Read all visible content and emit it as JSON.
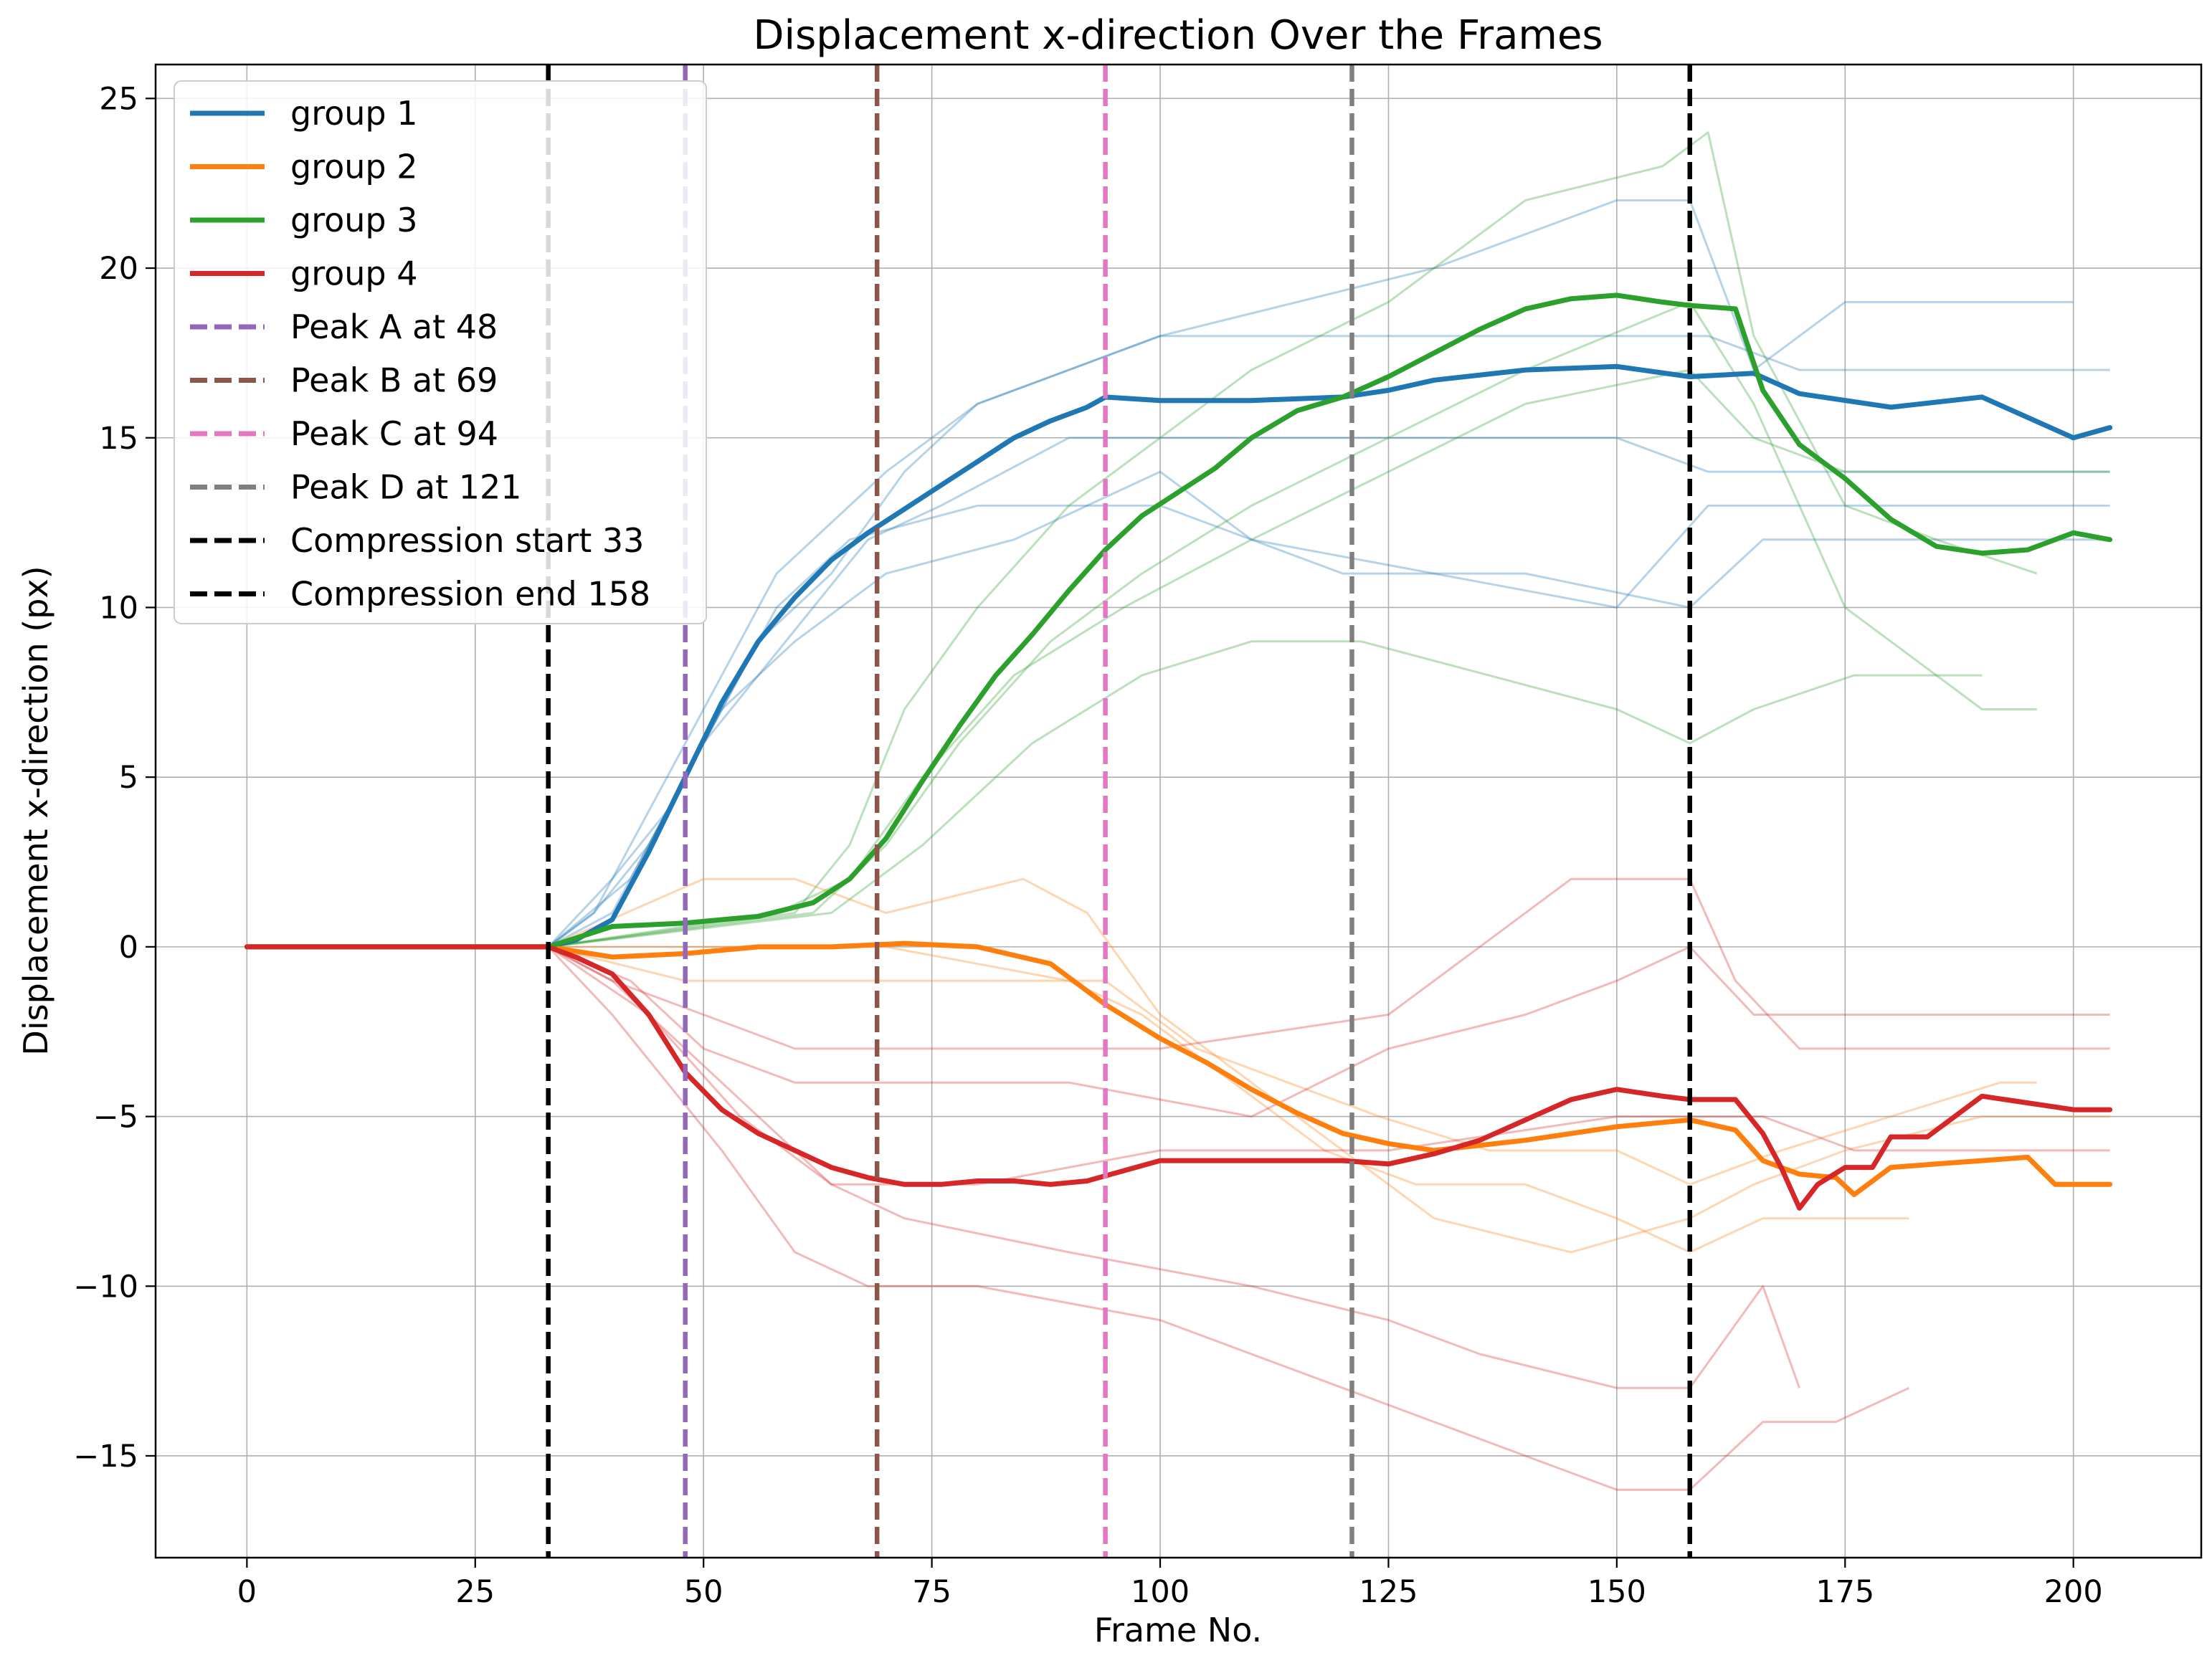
{
  "chart_data": {
    "type": "line",
    "title": "Displacement x-direction Over the Frames",
    "xlabel": "Frame No.",
    "ylabel": "Displacement x-direction (px)",
    "xlim": [
      -10,
      214
    ],
    "ylim": [
      -18,
      26
    ],
    "xticks": [
      0,
      25,
      50,
      75,
      100,
      125,
      150,
      175,
      200
    ],
    "yticks": [
      -15,
      -10,
      -5,
      0,
      5,
      10,
      15,
      20,
      25
    ],
    "xtick_labels": [
      "0",
      "25",
      "50",
      "75",
      "100",
      "125",
      "150",
      "175",
      "200"
    ],
    "ytick_labels": [
      "−15",
      "−10",
      "−5",
      "0",
      "5",
      "10",
      "15",
      "20",
      "25"
    ],
    "grid": true,
    "legend_position": "top-left",
    "series": [
      {
        "name": "group 1",
        "color": "#1f77b4",
        "x": [
          0,
          33,
          36,
          40,
          44,
          48,
          52,
          56,
          60,
          64,
          68,
          72,
          76,
          80,
          84,
          88,
          92,
          94,
          100,
          110,
          120,
          125,
          130,
          140,
          150,
          158,
          165,
          170,
          180,
          190,
          200,
          204
        ],
        "y": [
          0,
          0,
          0.2,
          0.8,
          2.8,
          5,
          7.2,
          9,
          10.3,
          11.4,
          12.2,
          12.9,
          13.6,
          14.3,
          15,
          15.5,
          15.9,
          16.2,
          16.1,
          16.1,
          16.2,
          16.4,
          16.7,
          17,
          17.1,
          16.8,
          16.9,
          16.3,
          15.9,
          16.2,
          15,
          15.3
        ]
      },
      {
        "name": "group 2",
        "color": "#ff7f0e",
        "x": [
          0,
          33,
          40,
          48,
          56,
          64,
          72,
          80,
          88,
          94,
          100,
          105,
          110,
          115,
          120,
          125,
          130,
          140,
          150,
          158,
          163,
          166,
          170,
          174,
          176,
          180,
          185,
          190,
          195,
          198,
          204
        ],
        "y": [
          0,
          0,
          -0.3,
          -0.2,
          0,
          0,
          0.1,
          0,
          -0.5,
          -1.7,
          -2.7,
          -3.4,
          -4.2,
          -4.9,
          -5.5,
          -5.8,
          -6,
          -5.7,
          -5.3,
          -5.1,
          -5.4,
          -6.3,
          -6.7,
          -6.8,
          -7.3,
          -6.5,
          -6.4,
          -6.3,
          -6.2,
          -7,
          -7
        ]
      },
      {
        "name": "group 3",
        "color": "#2ca02c",
        "x": [
          0,
          33,
          40,
          48,
          56,
          62,
          66,
          70,
          74,
          78,
          82,
          86,
          90,
          94,
          98,
          102,
          106,
          110,
          115,
          120,
          125,
          130,
          135,
          140,
          145,
          150,
          155,
          158,
          163,
          166,
          170,
          175,
          180,
          185,
          190,
          195,
          200,
          204
        ],
        "y": [
          0,
          0,
          0.6,
          0.7,
          0.9,
          1.3,
          2,
          3.2,
          4.9,
          6.5,
          8,
          9.2,
          10.5,
          11.7,
          12.7,
          13.4,
          14.1,
          15,
          15.8,
          16.2,
          16.8,
          17.5,
          18.2,
          18.8,
          19.1,
          19.2,
          19,
          18.9,
          18.8,
          16.4,
          14.8,
          13.8,
          12.6,
          11.8,
          11.6,
          11.7,
          12.2,
          12
        ]
      },
      {
        "name": "group 4",
        "color": "#d62728",
        "x": [
          0,
          33,
          36,
          40,
          44,
          48,
          52,
          56,
          60,
          64,
          68,
          72,
          76,
          80,
          84,
          88,
          92,
          96,
          100,
          110,
          120,
          125,
          130,
          135,
          140,
          145,
          150,
          155,
          158,
          163,
          166,
          168,
          170,
          172,
          175,
          178,
          180,
          184,
          190,
          195,
          200,
          204
        ],
        "y": [
          0,
          0,
          -0.3,
          -0.8,
          -2,
          -3.7,
          -4.8,
          -5.5,
          -6,
          -6.5,
          -6.8,
          -7,
          -7,
          -6.9,
          -6.9,
          -7,
          -6.9,
          -6.6,
          -6.3,
          -6.3,
          -6.3,
          -6.4,
          -6.1,
          -5.7,
          -5.1,
          -4.5,
          -4.2,
          -4.4,
          -4.5,
          -4.5,
          -5.5,
          -6.5,
          -7.7,
          -7,
          -6.5,
          -6.5,
          -5.6,
          -5.6,
          -4.4,
          -4.6,
          -4.8,
          -4.8
        ]
      }
    ],
    "vlines": [
      {
        "name": "Peak A at 48",
        "x": 48,
        "color": "#9467bd"
      },
      {
        "name": "Peak B at 69",
        "x": 69,
        "color": "#8c564b"
      },
      {
        "name": "Peak C at 94",
        "x": 94,
        "color": "#e377c2"
      },
      {
        "name": "Peak D at 121",
        "x": 121,
        "color": "#7f7f7f"
      },
      {
        "name": "Compression start 33",
        "x": 33,
        "color": "#000000"
      },
      {
        "name": "Compression end 158",
        "x": 158,
        "color": "#000000"
      }
    ],
    "background_tracks": [
      {
        "color": "#1f77b4",
        "x": [
          0,
          33,
          38,
          42,
          46,
          50,
          54,
          58,
          62,
          66,
          70,
          80,
          90,
          100,
          120,
          140,
          160,
          170,
          190,
          204
        ],
        "y": [
          0,
          0,
          1,
          3,
          5,
          7,
          9,
          11,
          12,
          13,
          14,
          16,
          17,
          18,
          18,
          18,
          18,
          17,
          17,
          17
        ]
      },
      {
        "color": "#1f77b4",
        "x": [
          0,
          33,
          38,
          44,
          50,
          56,
          62,
          68,
          76,
          90,
          110,
          130,
          150,
          160,
          175,
          204
        ],
        "y": [
          0,
          0,
          1,
          3,
          6,
          8,
          10,
          12,
          13,
          15,
          15,
          15,
          15,
          14,
          14,
          14
        ]
      },
      {
        "color": "#1f77b4",
        "x": [
          0,
          33,
          40,
          46,
          52,
          60,
          70,
          84,
          100,
          110,
          130,
          150,
          160,
          170,
          204
        ],
        "y": [
          0,
          0,
          2,
          4,
          7,
          9,
          11,
          12,
          14,
          12,
          11,
          10,
          13,
          13,
          13
        ]
      },
      {
        "color": "#1f77b4",
        "x": [
          0,
          33,
          40,
          48,
          56,
          64,
          72,
          80,
          100,
          130,
          150,
          158,
          165,
          175,
          200
        ],
        "y": [
          0,
          0,
          1,
          5,
          9,
          11,
          14,
          16,
          18,
          20,
          22,
          22,
          17,
          19,
          19
        ]
      },
      {
        "color": "#1f77b4",
        "x": [
          0,
          33,
          42,
          50,
          58,
          66,
          80,
          100,
          120,
          140,
          158,
          166,
          176,
          204
        ],
        "y": [
          0,
          0,
          2,
          6,
          10,
          12,
          13,
          13,
          11,
          11,
          10,
          12,
          12,
          12
        ]
      },
      {
        "color": "#2ca02c",
        "x": [
          0,
          33,
          60,
          66,
          72,
          80,
          90,
          100,
          110,
          125,
          140,
          155,
          160,
          165,
          175,
          185,
          196
        ],
        "y": [
          0,
          0,
          1,
          3,
          7,
          10,
          13,
          15,
          17,
          19,
          22,
          23,
          24,
          18,
          13,
          12,
          11
        ]
      },
      {
        "color": "#2ca02c",
        "x": [
          0,
          33,
          62,
          70,
          78,
          88,
          98,
          110,
          125,
          140,
          158,
          165,
          175,
          190,
          196
        ],
        "y": [
          0,
          0,
          1,
          3,
          6,
          9,
          11,
          13,
          15,
          17,
          19,
          16,
          10,
          7,
          7
        ]
      },
      {
        "color": "#2ca02c",
        "x": [
          0,
          33,
          58,
          66,
          74,
          84,
          96,
          110,
          125,
          140,
          158,
          165,
          175,
          204
        ],
        "y": [
          0,
          0,
          1,
          2,
          5,
          8,
          10,
          12,
          14,
          16,
          17,
          15,
          14,
          14
        ]
      },
      {
        "color": "#2ca02c",
        "x": [
          0,
          33,
          64,
          74,
          86,
          98,
          110,
          122,
          136,
          150,
          158,
          165,
          176,
          190
        ],
        "y": [
          0,
          0,
          1,
          3,
          6,
          8,
          9,
          9,
          8,
          7,
          6,
          7,
          8,
          8
        ]
      },
      {
        "color": "#ff7f0e",
        "x": [
          0,
          33,
          50,
          60,
          70,
          85,
          92,
          100,
          110,
          120,
          130,
          145,
          158,
          165,
          175,
          190,
          204
        ],
        "y": [
          0,
          0,
          2,
          2,
          1,
          2,
          1,
          -2,
          -4,
          -6,
          -8,
          -9,
          -8,
          -7,
          -6,
          -5,
          -5
        ]
      },
      {
        "color": "#ff7f0e",
        "x": [
          0,
          33,
          50,
          70,
          90,
          98,
          108,
          118,
          128,
          140,
          150,
          158,
          166,
          176,
          182
        ],
        "y": [
          0,
          0,
          0,
          0,
          -1,
          -2,
          -4,
          -6,
          -7,
          -7,
          -8,
          -9,
          -8,
          -8,
          -8
        ]
      },
      {
        "color": "#ff7f0e",
        "x": [
          0,
          33,
          48,
          70,
          94,
          104,
          114,
          124,
          136,
          150,
          158,
          168,
          180,
          192,
          196
        ],
        "y": [
          0,
          0,
          -1,
          -1,
          -1,
          -3,
          -4,
          -5,
          -6,
          -6,
          -7,
          -6,
          -5,
          -4,
          -4
        ]
      },
      {
        "color": "#d62728",
        "x": [
          0,
          33,
          40,
          46,
          52,
          60,
          68,
          80,
          100,
          110,
          120,
          130,
          140,
          150,
          158,
          166,
          174,
          182
        ],
        "y": [
          0,
          0,
          -2,
          -4,
          -6,
          -9,
          -10,
          -10,
          -11,
          -12,
          -13,
          -14,
          -15,
          -16,
          -16,
          -14,
          -14,
          -13
        ]
      },
      {
        "color": "#d62728",
        "x": [
          0,
          33,
          40,
          48,
          56,
          64,
          72,
          90,
          110,
          125,
          135,
          150,
          158,
          166,
          170
        ],
        "y": [
          0,
          0,
          -1,
          -3,
          -5,
          -7,
          -8,
          -9,
          -10,
          -11,
          -12,
          -13,
          -13,
          -10,
          -13
        ]
      },
      {
        "color": "#d62728",
        "x": [
          0,
          33,
          42,
          50,
          60,
          70,
          90,
          110,
          125,
          140,
          150,
          158,
          165,
          175,
          204
        ],
        "y": [
          0,
          0,
          -1,
          -3,
          -4,
          -4,
          -4,
          -5,
          -3,
          -2,
          -1,
          0,
          -2,
          -2,
          -2
        ]
      },
      {
        "color": "#d62728",
        "x": [
          0,
          33,
          40,
          50,
          60,
          70,
          100,
          125,
          135,
          145,
          158,
          163,
          170,
          204
        ],
        "y": [
          0,
          0,
          -1,
          -2,
          -3,
          -3,
          -3,
          -2,
          0,
          2,
          2,
          -1,
          -3,
          -3
        ]
      },
      {
        "color": "#d62728",
        "x": [
          0,
          33,
          44,
          54,
          64,
          80,
          100,
          125,
          150,
          158,
          166,
          176,
          204
        ],
        "y": [
          0,
          0,
          -2,
          -5,
          -7,
          -7,
          -6,
          -6,
          -5,
          -5,
          -5,
          -6,
          -6
        ]
      }
    ]
  }
}
